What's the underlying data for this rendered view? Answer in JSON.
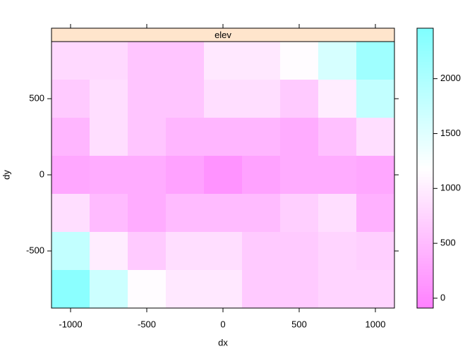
{
  "chart_data": {
    "type": "heatmap",
    "strip": "elev",
    "xlabel": "dx",
    "ylabel": "dy",
    "x": [
      -1000,
      -750,
      -500,
      -250,
      0,
      250,
      500,
      750,
      1000
    ],
    "y": [
      750,
      500,
      250,
      0,
      -250,
      -500,
      -750
    ],
    "values": [
      [
        800,
        800,
        600,
        600,
        950,
        950,
        1150,
        1600,
        2150
      ],
      [
        650,
        850,
        600,
        600,
        850,
        850,
        650,
        1000,
        1800
      ],
      [
        450,
        850,
        600,
        450,
        450,
        450,
        350,
        550,
        850
      ],
      [
        300,
        350,
        350,
        250,
        100,
        250,
        350,
        350,
        300
      ],
      [
        850,
        500,
        350,
        500,
        500,
        500,
        700,
        850,
        400
      ],
      [
        1800,
        1000,
        650,
        850,
        850,
        650,
        650,
        750,
        700
      ],
      [
        2350,
        1700,
        1150,
        950,
        950,
        650,
        650,
        750,
        750
      ]
    ],
    "xlim": [
      -1125,
      1125
    ],
    "ylim": [
      -875,
      875
    ],
    "xticks": [
      -1000,
      -500,
      0,
      500,
      1000
    ],
    "yticks": [
      -500,
      0,
      500
    ],
    "zlim": [
      -90,
      2460
    ],
    "zticks": [
      0,
      500,
      1000,
      1500,
      2000
    ],
    "low_color": "#FF80FF",
    "mid_color": "#FFFFFF",
    "high_color": "#80FFFF",
    "strip_color": "#FFE5CC"
  }
}
